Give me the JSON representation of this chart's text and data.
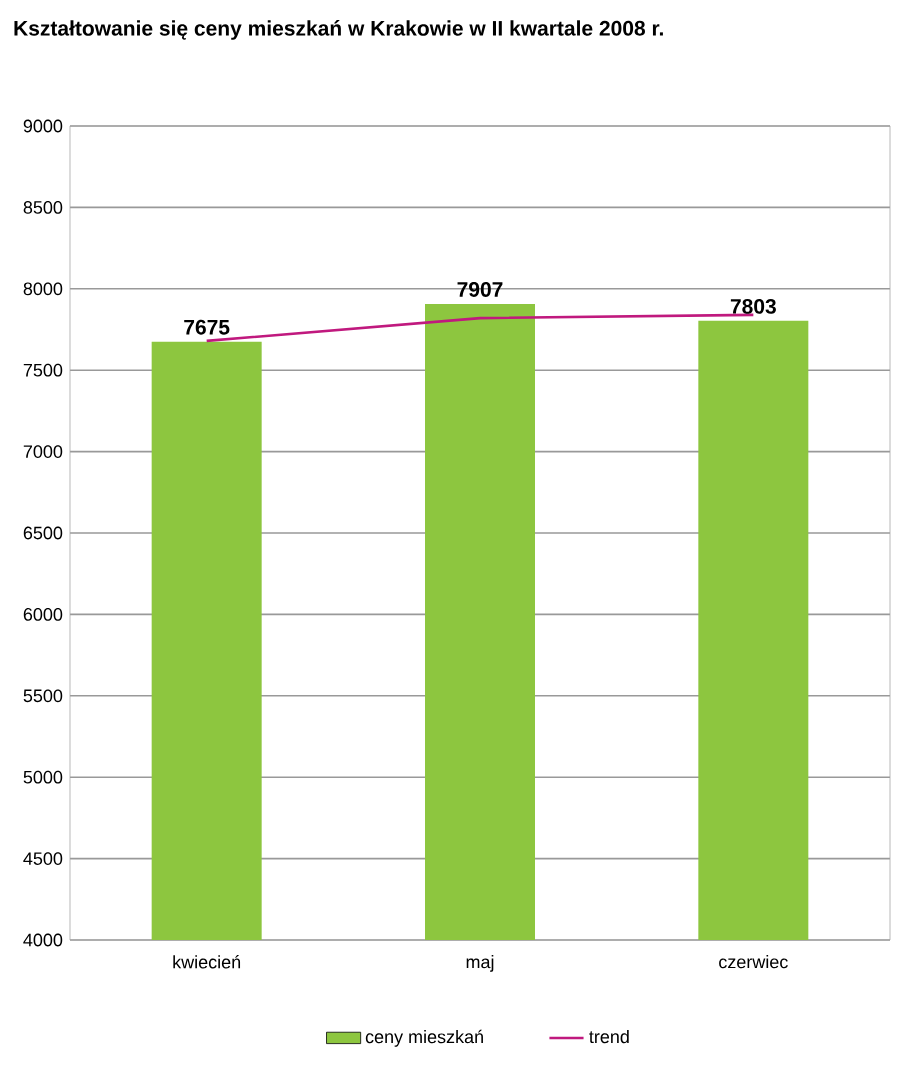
{
  "chart_data": {
    "type": "bar",
    "title": "Kształtowanie się ceny mieszkań w Krakowie w II kwartale 2008 r.",
    "categories": [
      "kwiecień",
      "maj",
      "czerwiec"
    ],
    "series": [
      {
        "name": "ceny mieszkań",
        "color": "#8dc63f",
        "values": [
          7675,
          7907,
          7803
        ],
        "value_labels": [
          "7675",
          "7907",
          "7803"
        ]
      },
      {
        "name": "trend",
        "type": "line",
        "color": "#c0197e",
        "values": [
          7680,
          7820,
          7840
        ]
      }
    ],
    "ylim": [
      4000,
      9000
    ],
    "yticks": [
      4000,
      4500,
      5000,
      5500,
      6000,
      6500,
      7000,
      7500,
      8000,
      8500,
      9000
    ],
    "grid": "y",
    "legend": "bottom",
    "marker": "none"
  }
}
